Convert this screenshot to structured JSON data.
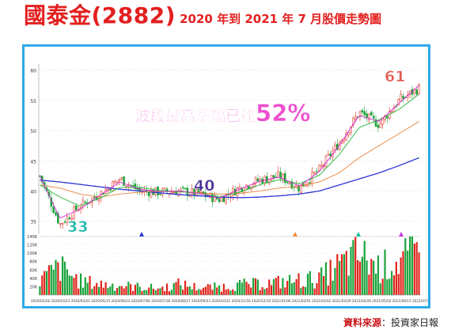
{
  "title": {
    "main": "國泰金(2882)",
    "sub": "2020 年到 2021 年 7 月股價走勢圖"
  },
  "source": {
    "label": "資料來源",
    "separator": "：",
    "text": "投資家日報"
  },
  "annotations": {
    "headline": "波段最高漲幅已達",
    "pct": "52%",
    "low": "33",
    "mid": "40",
    "high": "61"
  },
  "colors": {
    "up": "#e0241b",
    "down": "#19a33a",
    "ma_fast": "#d42ad4",
    "ma_mid": "#27b83a",
    "ma_slow": "#e8823a",
    "ma_long": "#2a35d6",
    "accent": "#2fa9e6",
    "headline": "#ee4fcf",
    "low_label": "#15b8aa",
    "mid_label": "#4a2f96",
    "high_label": "#e35a50"
  },
  "chart_data": [
    {
      "type": "line",
      "description": "candlestick",
      "x": [
        "2020/02/26",
        "2020/03/23",
        "2020/04/20",
        "2020/05/15",
        "2020/06/10",
        "2020/07/06",
        "2020/07/30",
        "2020/08/27",
        "2020/09/23",
        "2020/10/21",
        "2020/11/16",
        "2020/12/10",
        "2021/01/06",
        "2021/02/01",
        "2021/03/02",
        "2021/03/29",
        "2021/04/26",
        "2021/05/20",
        "2021/06/15",
        "2021/07/12"
      ],
      "series": [
        {
          "name": "close",
          "values": [
            42.5,
            34.5,
            37.5,
            39.5,
            42.0,
            40.0,
            39.8,
            40.0,
            39.5,
            38.6,
            40.5,
            41.8,
            42.5,
            40.5,
            43.5,
            48.0,
            53.0,
            51.0,
            55.0,
            57.0
          ]
        },
        {
          "name": "MA5",
          "values": [
            42.5,
            35.5,
            37.0,
            39.3,
            41.5,
            40.3,
            39.9,
            40.0,
            39.6,
            38.8,
            40.3,
            41.6,
            42.3,
            40.8,
            43.2,
            47.5,
            52.5,
            51.5,
            54.5,
            57.5
          ]
        },
        {
          "name": "MA20",
          "values": [
            41.0,
            39.0,
            37.5,
            38.8,
            40.6,
            40.6,
            40.1,
            39.9,
            39.6,
            39.0,
            39.8,
            41.0,
            41.9,
            41.2,
            42.6,
            46.0,
            50.5,
            51.8,
            53.5,
            56.0
          ]
        },
        {
          "name": "MA60",
          "values": [
            41.0,
            40.5,
            39.5,
            39.0,
            39.5,
            39.8,
            40.0,
            39.9,
            39.7,
            39.5,
            39.6,
            40.0,
            40.5,
            40.8,
            41.5,
            43.0,
            45.5,
            47.5,
            49.5,
            51.5
          ]
        },
        {
          "name": "MA240",
          "values": [
            41.8,
            41.5,
            41.1,
            40.7,
            40.3,
            40.0,
            39.7,
            39.4,
            39.2,
            39.0,
            38.9,
            39.0,
            39.2,
            39.5,
            40.0,
            41.0,
            42.0,
            43.0,
            44.2,
            45.5
          ]
        }
      ],
      "ylim": [
        33,
        61
      ],
      "yticks": [
        35,
        40,
        45,
        50,
        55,
        60
      ]
    },
    {
      "type": "bar",
      "description": "volume",
      "ylabel_ticks": [
        "20K",
        "40K",
        "60K",
        "80K",
        "100K",
        "120K",
        "140K"
      ],
      "ylim": [
        0,
        140000
      ],
      "values": [
        42000,
        75000,
        38000,
        30000,
        26000,
        22000,
        18000,
        30000,
        20000,
        22000,
        28000,
        30000,
        35000,
        40000,
        45000,
        80000,
        110000,
        75000,
        90000,
        120000
      ]
    }
  ]
}
